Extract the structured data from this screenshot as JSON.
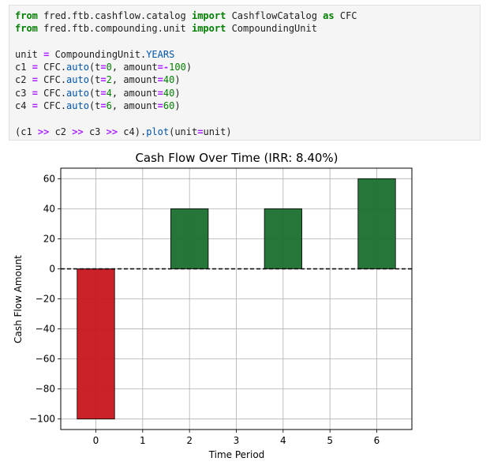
{
  "code_cell": {
    "lines": [
      [
        {
          "t": "from",
          "c": "kw"
        },
        {
          "t": " fred.ftb.cashflow.catalog "
        },
        {
          "t": "import",
          "c": "kw"
        },
        {
          "t": " CashflowCatalog "
        },
        {
          "t": "as",
          "c": "kw"
        },
        {
          "t": " CFC"
        }
      ],
      [
        {
          "t": "from",
          "c": "kw"
        },
        {
          "t": " fred.ftb.compounding.unit "
        },
        {
          "t": "import",
          "c": "kw"
        },
        {
          "t": " CompoundingUnit"
        }
      ],
      [],
      [
        {
          "t": "unit "
        },
        {
          "t": "=",
          "c": "op"
        },
        {
          "t": " CompoundingUnit."
        },
        {
          "t": "YEARS",
          "c": "attr"
        }
      ],
      [
        {
          "t": "c1 "
        },
        {
          "t": "=",
          "c": "op"
        },
        {
          "t": " CFC."
        },
        {
          "t": "auto",
          "c": "attr"
        },
        {
          "t": "(t"
        },
        {
          "t": "=",
          "c": "op"
        },
        {
          "t": "0",
          "c": "num"
        },
        {
          "t": ", amount"
        },
        {
          "t": "=-",
          "c": "op"
        },
        {
          "t": "100",
          "c": "num"
        },
        {
          "t": ")"
        }
      ],
      [
        {
          "t": "c2 "
        },
        {
          "t": "=",
          "c": "op"
        },
        {
          "t": " CFC."
        },
        {
          "t": "auto",
          "c": "attr"
        },
        {
          "t": "(t"
        },
        {
          "t": "=",
          "c": "op"
        },
        {
          "t": "2",
          "c": "num"
        },
        {
          "t": ", amount"
        },
        {
          "t": "=",
          "c": "op"
        },
        {
          "t": "40",
          "c": "num"
        },
        {
          "t": ")"
        }
      ],
      [
        {
          "t": "c3 "
        },
        {
          "t": "=",
          "c": "op"
        },
        {
          "t": " CFC."
        },
        {
          "t": "auto",
          "c": "attr"
        },
        {
          "t": "(t"
        },
        {
          "t": "=",
          "c": "op"
        },
        {
          "t": "4",
          "c": "num"
        },
        {
          "t": ", amount"
        },
        {
          "t": "=",
          "c": "op"
        },
        {
          "t": "40",
          "c": "num"
        },
        {
          "t": ")"
        }
      ],
      [
        {
          "t": "c4 "
        },
        {
          "t": "=",
          "c": "op"
        },
        {
          "t": " CFC."
        },
        {
          "t": "auto",
          "c": "attr"
        },
        {
          "t": "(t"
        },
        {
          "t": "=",
          "c": "op"
        },
        {
          "t": "6",
          "c": "num"
        },
        {
          "t": ", amount"
        },
        {
          "t": "=",
          "c": "op"
        },
        {
          "t": "60",
          "c": "num"
        },
        {
          "t": ")"
        }
      ],
      [],
      [
        {
          "t": "(c1 "
        },
        {
          "t": ">>",
          "c": "op"
        },
        {
          "t": " c2 "
        },
        {
          "t": ">>",
          "c": "op"
        },
        {
          "t": " c3 "
        },
        {
          "t": ">>",
          "c": "op"
        },
        {
          "t": " c4)."
        },
        {
          "t": "plot",
          "c": "attr"
        },
        {
          "t": "(unit"
        },
        {
          "t": "=",
          "c": "op"
        },
        {
          "t": "unit)"
        }
      ]
    ]
  },
  "chart_data": {
    "type": "bar",
    "title": "Cash Flow Over Time (IRR: 8.40%)",
    "xlabel": "Time Period",
    "ylabel": "Cash Flow Amount",
    "x": [
      0,
      2,
      4,
      6
    ],
    "values": [
      -100,
      40,
      40,
      60
    ],
    "xlim": [
      -0.75,
      6.75
    ],
    "ylim": [
      -107,
      67
    ],
    "xticks": [
      0,
      1,
      2,
      3,
      4,
      5,
      6
    ],
    "yticks": [
      -100,
      -80,
      -60,
      -40,
      -20,
      0,
      20,
      40,
      60
    ],
    "ytick_labels": [
      "−100",
      "−80",
      "−60",
      "−40",
      "−20",
      "0",
      "20",
      "40",
      "60"
    ],
    "grid": true,
    "zero_line": "dashed",
    "colors": {
      "positive": "#1a6e2e",
      "negative": "#c8161e"
    }
  }
}
